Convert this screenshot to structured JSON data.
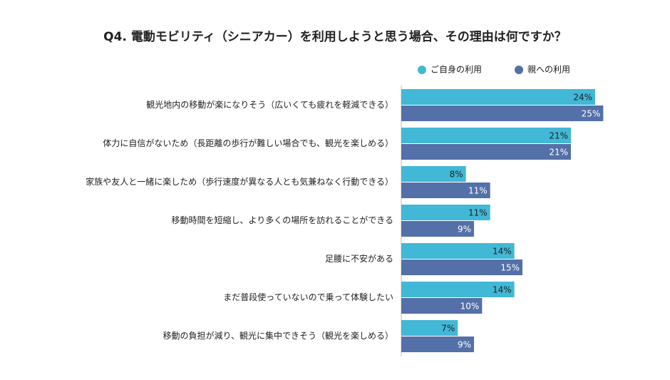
{
  "chart_data": {
    "type": "hbar",
    "title": "Q4. 電動モビリティ（シニアカー）を利用しようと思う場合、その理由は何ですか？",
    "categories": [
      "観光地内の移動が楽になりそう（広いくても疲れを軽減できる）",
      "体力に自信がないため（長距離の歩行が難しい場合でも、観光を楽しめる）",
      "家族や友人と一緒に楽しため（歩行速度が異なる人とも気兼ねなく行動できる）",
      "移動時間を短縮し、より多くの場所を訪れることができる",
      "足腰に不安がある",
      "まだ普段使っていないので乗って体験したい",
      "移動の負担が減り、観光に集中できそう（観光を楽しめる）"
    ],
    "series": [
      {
        "name": "ご自身の利用",
        "color": "#41b8d5",
        "label_color": "#222222",
        "values": [
          24,
          21,
          8,
          11,
          14,
          14,
          7
        ],
        "value_labels": [
          "24%",
          "21%",
          "8%",
          "11%",
          "14%",
          "14%",
          "7%"
        ]
      },
      {
        "name": "親への利用",
        "color": "#5470a8",
        "label_color": "#ffffff",
        "values": [
          25,
          21,
          11,
          9,
          15,
          10,
          9
        ],
        "value_labels": [
          "25%",
          "21%",
          "11%",
          "9%",
          "15%",
          "10%",
          "9%"
        ]
      }
    ],
    "xlim": [
      0,
      30
    ]
  }
}
